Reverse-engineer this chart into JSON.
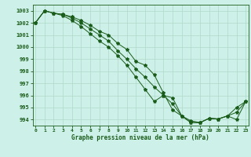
{
  "title": "Graphe pression niveau de la mer (hPa)",
  "background_color": "#cdf0e8",
  "line_color": "#1a5c1a",
  "grid_color": "#b0d8c8",
  "ylim": [
    993.5,
    1003.5
  ],
  "xlim": [
    -0.3,
    23.3
  ],
  "yticks": [
    994,
    995,
    996,
    997,
    998,
    999,
    1000,
    1001,
    1002,
    1003
  ],
  "xticks": [
    0,
    1,
    2,
    3,
    4,
    5,
    6,
    7,
    8,
    9,
    10,
    11,
    12,
    13,
    14,
    15,
    16,
    17,
    18,
    19,
    20,
    21,
    22,
    23
  ],
  "line1_y": [
    1002.0,
    1003.0,
    1002.8,
    1002.7,
    1002.5,
    1002.2,
    1001.8,
    1001.3,
    1001.0,
    1000.3,
    999.8,
    998.8,
    998.5,
    997.7,
    996.2,
    994.8,
    994.3,
    993.9,
    993.75,
    994.1,
    994.05,
    994.3,
    995.0,
    995.5
  ],
  "line2_y": [
    1002.0,
    1003.0,
    1002.8,
    1002.7,
    1002.4,
    1002.0,
    1001.5,
    1001.0,
    1000.5,
    999.7,
    999.0,
    998.2,
    997.5,
    996.7,
    996.0,
    995.3,
    994.3,
    993.75,
    993.75,
    994.1,
    994.05,
    994.3,
    994.6,
    995.5
  ],
  "line3_y": [
    1002.0,
    1003.0,
    1002.8,
    1002.6,
    1002.2,
    1001.7,
    1001.1,
    1000.5,
    1000.0,
    999.3,
    998.5,
    997.5,
    996.5,
    995.5,
    996.0,
    995.8,
    994.3,
    993.75,
    993.75,
    994.1,
    994.05,
    994.3,
    994.0,
    995.5
  ]
}
